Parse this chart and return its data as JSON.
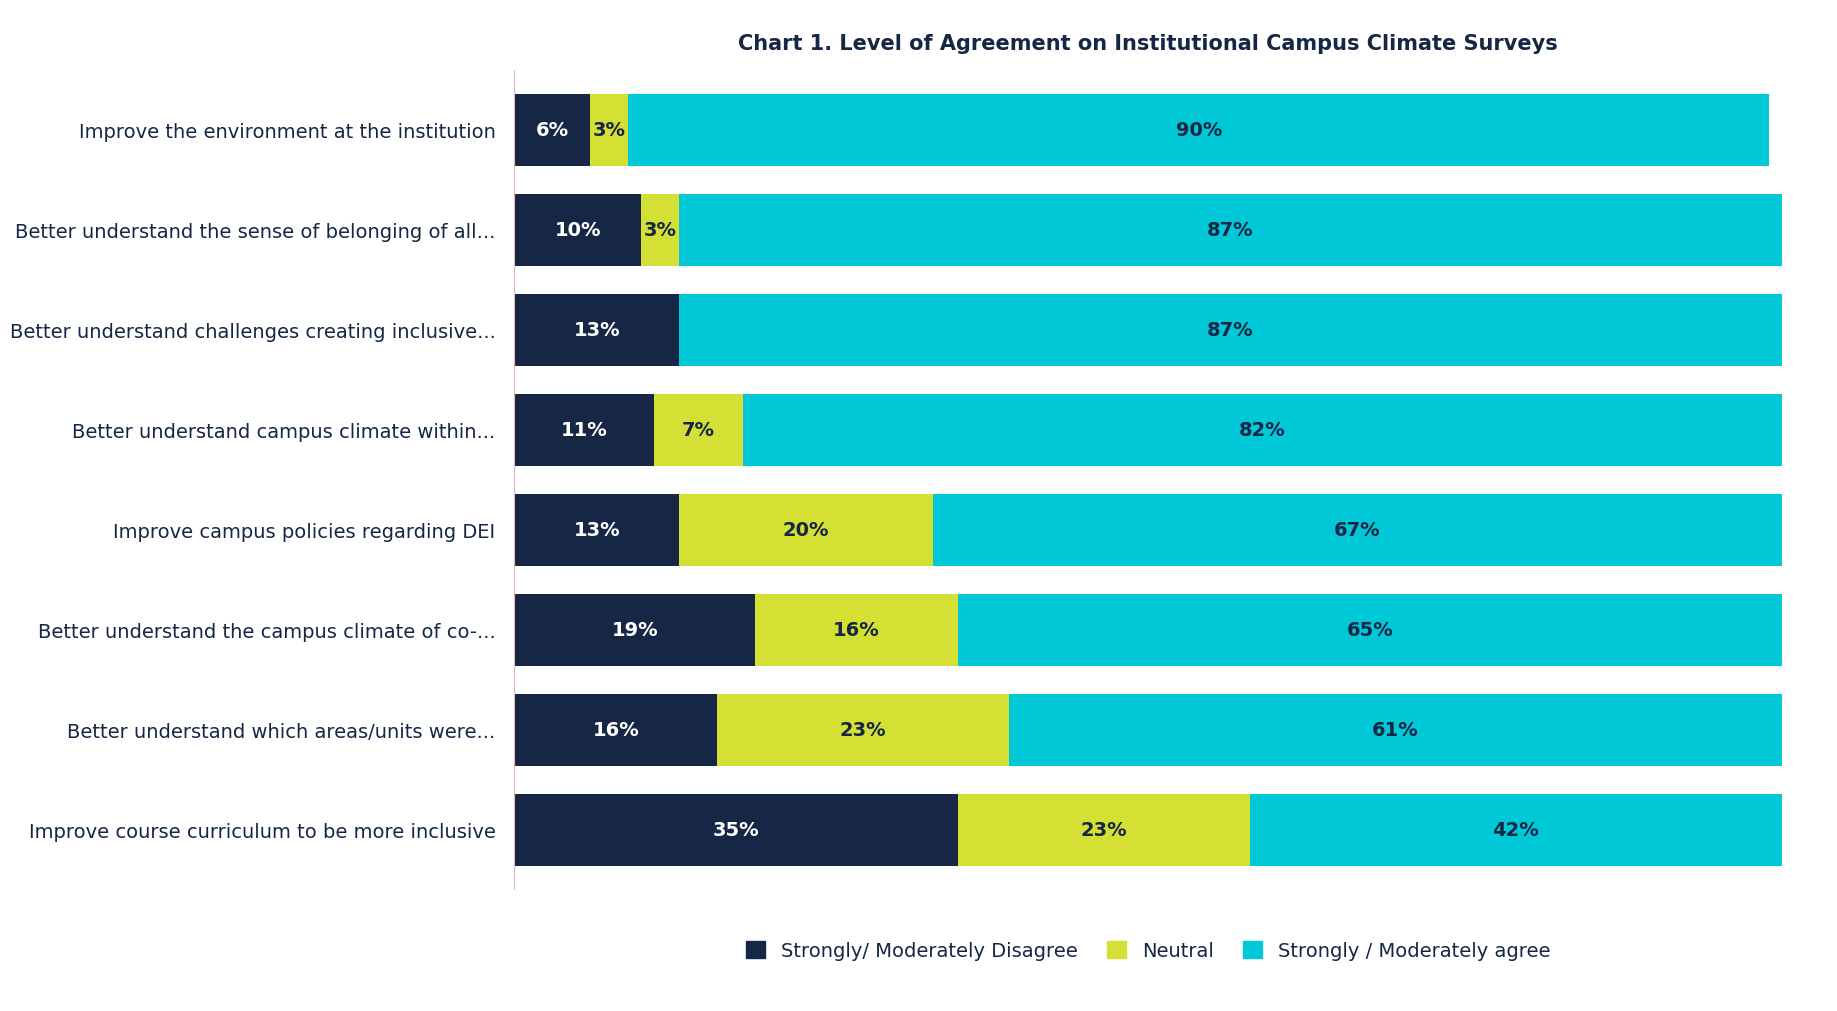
{
  "title": "Chart 1. Level of Agreement on Institutional Campus Climate Surveys",
  "categories": [
    "Improve the environment at the institution",
    "Better understand the sense of belonging of all...",
    "Better understand challenges creating inclusive...",
    "Better understand campus climate within...",
    "Improve campus policies regarding DEI",
    "Better understand the campus climate of co-...",
    "Better understand which areas/units were...",
    "Improve course curriculum to be more inclusive"
  ],
  "disagree": [
    6,
    10,
    13,
    11,
    13,
    19,
    16,
    35
  ],
  "neutral": [
    3,
    3,
    0,
    7,
    20,
    16,
    23,
    23
  ],
  "agree": [
    90,
    87,
    87,
    82,
    67,
    65,
    61,
    42
  ],
  "color_disagree": "#152744",
  "color_neutral": "#d4e034",
  "color_agree": "#00c8d7",
  "legend_labels": [
    "Strongly/ Moderately Disagree",
    "Neutral",
    "Strongly / Moderately agree"
  ],
  "bar_height": 0.72,
  "background_color": "#ffffff",
  "text_color": "#152744",
  "xlim": 100
}
